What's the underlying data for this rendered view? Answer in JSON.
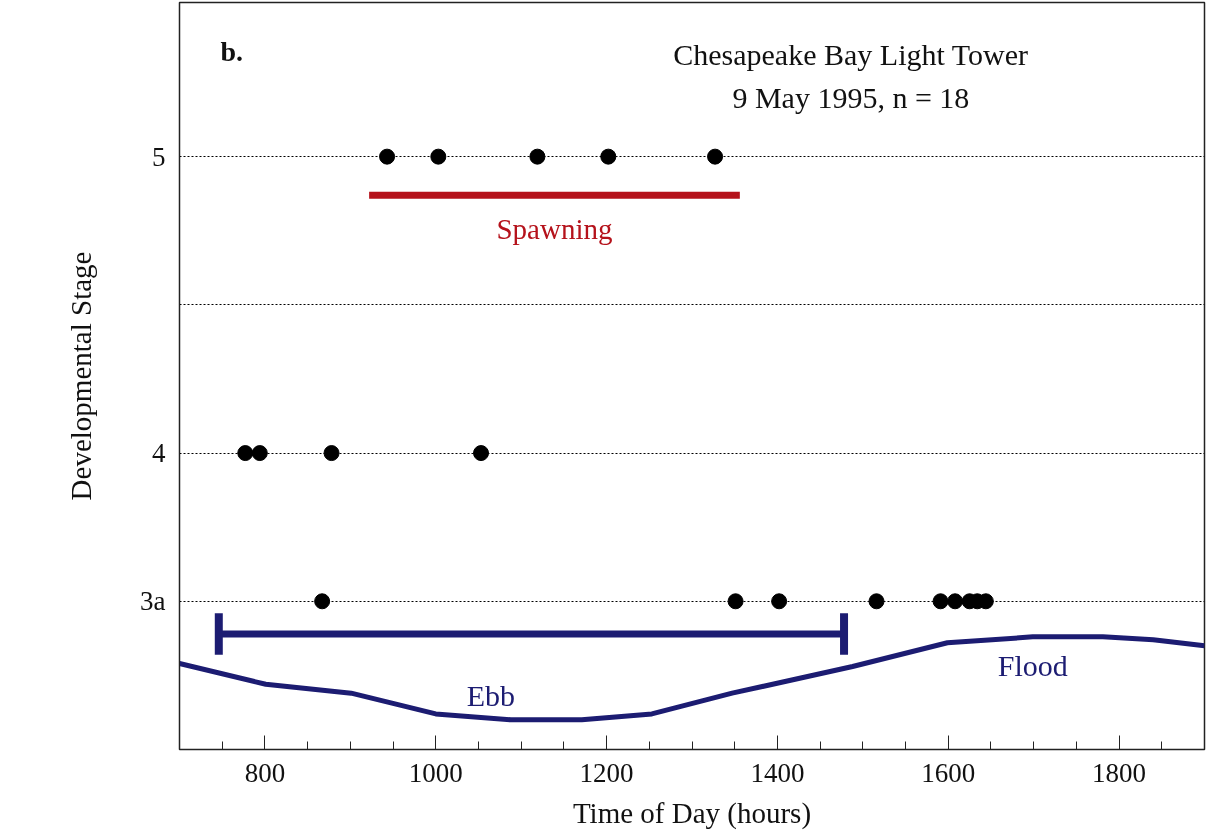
{
  "chart_data": {
    "type": "scatter",
    "title": "Chesapeake Bay Light Tower",
    "subtitle": "9 May 1995, n = 18",
    "xlabel": "Time of Day (hours)",
    "ylabel": "Developmental Stage",
    "annotations": [
      "b.",
      "Ebb",
      "Flood"
    ],
    "xlim": [
      700,
      1900
    ],
    "ylim": [
      3.0,
      5.52
    ],
    "xticks": [
      {
        "value": 750,
        "label": null
      },
      800,
      {
        "value": 850,
        "label": null
      },
      {
        "value": 900,
        "label": null
      },
      {
        "value": 950,
        "label": null
      },
      1000,
      {
        "value": 1050,
        "label": null
      },
      {
        "value": 1100,
        "label": null
      },
      {
        "value": 1150,
        "label": null
      },
      1200,
      {
        "value": 1250,
        "label": null
      },
      {
        "value": 1300,
        "label": null
      },
      {
        "value": 1350,
        "label": null
      },
      1400,
      {
        "value": 1450,
        "label": null
      },
      {
        "value": 1500,
        "label": null
      },
      {
        "value": 1550,
        "label": null
      },
      1600,
      {
        "value": 1650,
        "label": null
      },
      {
        "value": 1700,
        "label": null
      },
      {
        "value": 1750,
        "label": null
      },
      1800,
      {
        "value": 1850,
        "label": null
      }
    ],
    "yticks": [
      {
        "value": 3.5,
        "label": "3a"
      },
      4,
      {
        "value": 4.5,
        "label": null
      },
      5
    ],
    "grid": "y",
    "marker": "circle",
    "line_style": "solid",
    "series": [
      {
        "color": "#000000",
        "x": [
          943,
          1003,
          1119,
          1202,
          1327,
          777,
          794,
          878,
          1053,
          867,
          1351,
          1402,
          1516,
          1591,
          1608,
          1625,
          1634,
          1644
        ],
        "values": [
          5,
          5,
          5,
          5,
          5,
          4,
          4,
          4,
          4,
          3.5,
          3.5,
          3.5,
          3.5,
          3.5,
          3.5,
          3.5,
          3.5,
          3.5
        ]
      },
      {
        "type": "line",
        "marker": "none",
        "name": "Spawning",
        "color": "#b5121b",
        "x": [
          922,
          1356
        ],
        "values": [
          4.87,
          4.87
        ]
      },
      {
        "type": "line",
        "marker": "none",
        "color": "#1c1c72",
        "x": [
          746,
          1478
        ],
        "values": [
          3.39,
          3.39
        ],
        "errors": [
          0.07,
          0.07
        ]
      },
      {
        "type": "line",
        "marker": "none",
        "color": "#1c1c72",
        "x": [
          700,
          801,
          901,
          1000,
          1088,
          1171,
          1253,
          1347,
          1488,
          1599,
          1699,
          1781,
          1840,
          1900
        ],
        "values": [
          3.29,
          3.22,
          3.19,
          3.12,
          3.1,
          3.1,
          3.12,
          3.19,
          3.28,
          3.36,
          3.38,
          3.38,
          3.37,
          3.35
        ]
      }
    ]
  }
}
